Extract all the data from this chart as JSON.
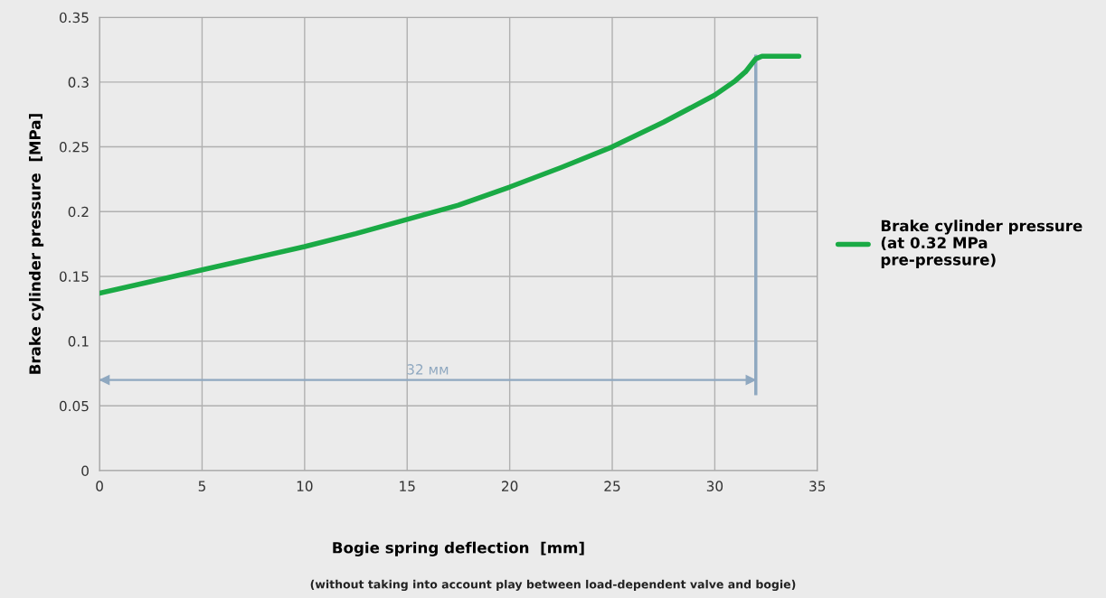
{
  "chart_data": {
    "type": "line",
    "xlabel": "Bogie spring deflection  [mm]",
    "ylabel": "Brake cylinder pressure  [MPa]",
    "series": [
      {
        "name": "Brake cylinder pressure\n(at 0.32 MPa\npre-pressure)",
        "color": "#1aaa45",
        "x": [
          0,
          2.5,
          5,
          7.5,
          10,
          12.5,
          15,
          17.5,
          20,
          22.5,
          25,
          27.5,
          30,
          31,
          31.5,
          31.8,
          32,
          32.3,
          33,
          34.1
        ],
        "values": [
          0.137,
          0.146,
          0.155,
          0.164,
          0.173,
          0.183,
          0.194,
          0.205,
          0.219,
          0.234,
          0.25,
          0.269,
          0.29,
          0.301,
          0.308,
          0.314,
          0.318,
          0.32,
          0.32,
          0.32
        ]
      }
    ],
    "xlim": [
      0,
      35
    ],
    "xticks": [
      0,
      5,
      10,
      15,
      20,
      25,
      30,
      35
    ],
    "ylim": [
      0,
      0.35
    ],
    "yticks": [
      0,
      0.05,
      0.1,
      0.15,
      0.2,
      0.25,
      0.3,
      0.35
    ],
    "ref_lines": [
      {
        "axis": "x",
        "value": 32,
        "label": null,
        "color": "#8fa8c0"
      },
      {
        "axis": "y",
        "value": 0.07,
        "label": "32 мм",
        "color": "#8fa8c0"
      }
    ],
    "annotations": [
      "(without taking into account play between load-dependent valve and bogie)"
    ],
    "grid": true,
    "legend": "right",
    "marker": "none",
    "line_style": "solid"
  }
}
